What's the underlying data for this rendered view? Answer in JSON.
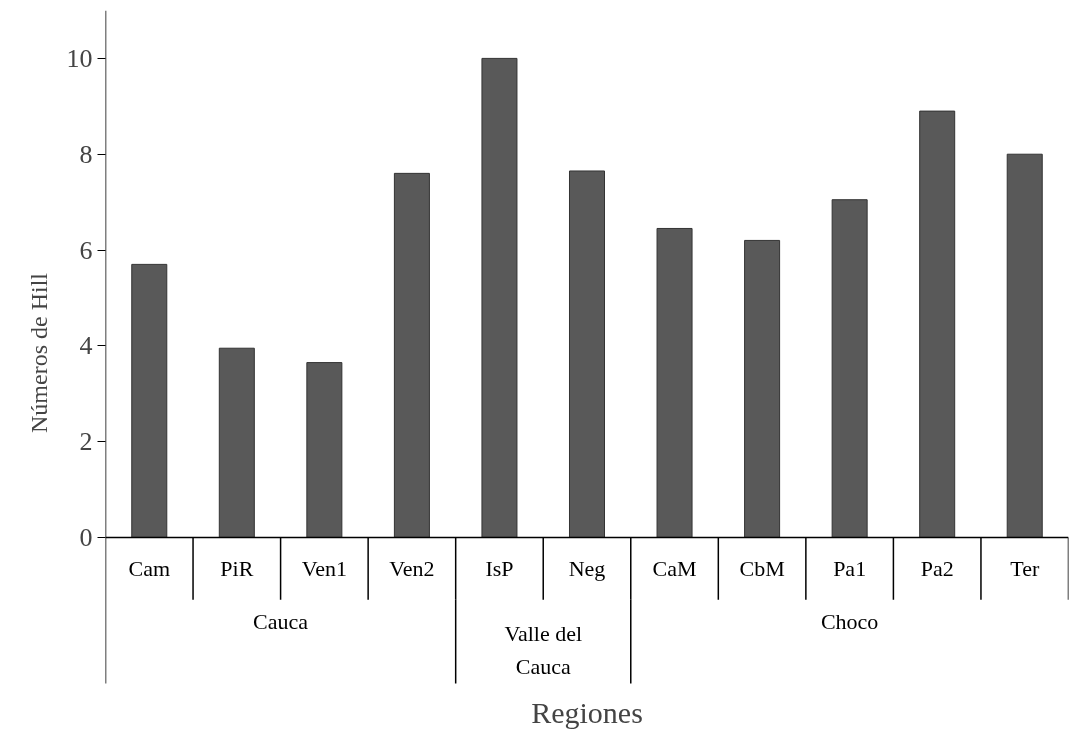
{
  "chart_data": {
    "type": "bar",
    "xlabel": "Regiones",
    "ylabel": "Números de Hill",
    "categories": [
      "Cam",
      "PiR",
      "Ven1",
      "Ven2",
      "IsP",
      "Neg",
      "CaM",
      "CbM",
      "Pa1",
      "Pa2",
      "Ter"
    ],
    "values": [
      5.7,
      3.95,
      3.65,
      7.6,
      10.0,
      7.65,
      6.45,
      6.2,
      7.05,
      8.9,
      8.0
    ],
    "color": "#595959",
    "ylim": [
      0,
      11
    ],
    "yticks": [
      0,
      2,
      4,
      6,
      8,
      10
    ],
    "grid": false,
    "annotations": [
      "Cauca",
      "Valle del Cauca",
      "Choco"
    ]
  }
}
